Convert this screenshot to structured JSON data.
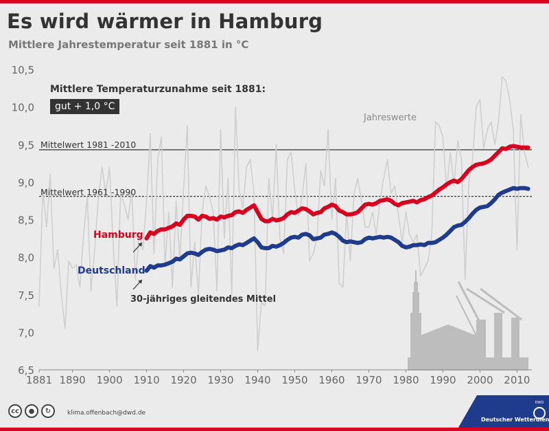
{
  "header": {
    "title": "Es wird wärmer in Hamburg",
    "subtitle": "Mittlere Jahrestemperatur seit 1881 in °C"
  },
  "annotations": {
    "increase_title": "Mittlere Temperaturzunahme seit 1881:",
    "increase_value": "gut + 1,0 °C",
    "jahreswerte": "Jahreswerte",
    "mittel_1981": "Mittelwert 1981 -2010",
    "mittel_1961": "Mittelwert 1961 -1990",
    "hamburg": "Hamburg",
    "deutschland": "Deutschland",
    "gleitend": "30-jähriges gleitendes Mittel"
  },
  "footer": {
    "email": "klima.offenbach@dwd.de",
    "dwd_label": "Deutscher Wetterdienst",
    "dwd_logo_text": "DWD"
  },
  "colors": {
    "hamburg": "#d7001f",
    "deutschland": "#1f3b8c",
    "annual": "#cfcfcf",
    "reference": "#333333",
    "skyline": "#bdbdbd"
  },
  "chart_data": {
    "type": "line",
    "title": "Es wird wärmer in Hamburg",
    "subtitle": "Mittlere Jahrestemperatur seit 1881 in °C",
    "xlim": [
      1881,
      2014
    ],
    "ylim": [
      6.5,
      10.5
    ],
    "x_ticks": [
      1881,
      1890,
      1900,
      1910,
      1920,
      1930,
      1940,
      1950,
      1960,
      1970,
      1980,
      1990,
      2000,
      2010
    ],
    "y_ticks": [
      6.5,
      7.0,
      7.5,
      8.0,
      8.5,
      9.0,
      9.5,
      10.0,
      10.5
    ],
    "y_tick_labels": [
      "6,5",
      "7,0",
      "7,5",
      "8,0",
      "8,5",
      "9,0",
      "9,5",
      "10,0",
      "10,5"
    ],
    "grid": false,
    "reference_lines": [
      {
        "name": "Mittelwert 1981 -2010",
        "value": 9.43,
        "style": "solid"
      },
      {
        "name": "Mittelwert 1961 -1990",
        "value": 8.81,
        "style": "dashed"
      }
    ],
    "series": [
      {
        "name": "Jahreswerte",
        "x": [
          1881,
          1882,
          1883,
          1884,
          1885,
          1886,
          1887,
          1888,
          1889,
          1890,
          1891,
          1892,
          1893,
          1894,
          1895,
          1896,
          1897,
          1898,
          1899,
          1900,
          1901,
          1902,
          1903,
          1904,
          1905,
          1906,
          1907,
          1908,
          1909,
          1910,
          1911,
          1912,
          1913,
          1914,
          1915,
          1916,
          1917,
          1918,
          1919,
          1920,
          1921,
          1922,
          1923,
          1924,
          1925,
          1926,
          1927,
          1928,
          1929,
          1930,
          1931,
          1932,
          1933,
          1934,
          1935,
          1936,
          1937,
          1938,
          1939,
          1940,
          1941,
          1942,
          1943,
          1944,
          1945,
          1946,
          1947,
          1948,
          1949,
          1950,
          1951,
          1952,
          1953,
          1954,
          1955,
          1956,
          1957,
          1958,
          1959,
          1960,
          1961,
          1962,
          1963,
          1964,
          1965,
          1966,
          1967,
          1968,
          1969,
          1970,
          1971,
          1972,
          1973,
          1974,
          1975,
          1976,
          1977,
          1978,
          1979,
          1980,
          1981,
          1982,
          1983,
          1984,
          1985,
          1986,
          1987,
          1988,
          1989,
          1990,
          1991,
          1992,
          1993,
          1994,
          1995,
          1996,
          1997,
          1998,
          1999,
          2000,
          2001,
          2002,
          2003,
          2004,
          2005,
          2006,
          2007,
          2008,
          2009,
          2010,
          2011,
          2012,
          2013
        ],
        "values": [
          7.35,
          8.9,
          8.4,
          9.1,
          7.85,
          8.1,
          7.5,
          7.05,
          7.95,
          7.85,
          7.9,
          7.6,
          8.3,
          8.8,
          7.55,
          8.1,
          8.8,
          9.2,
          8.85,
          9.2,
          8.15,
          7.35,
          8.85,
          8.7,
          8.5,
          8.9,
          7.7,
          8.3,
          8.1,
          8.75,
          9.65,
          8.05,
          9.3,
          9.6,
          7.9,
          8.6,
          7.6,
          8.75,
          7.95,
          8.9,
          9.75,
          7.6,
          8.2,
          7.5,
          8.6,
          8.95,
          8.8,
          8.6,
          7.55,
          9.7,
          8.25,
          9.05,
          7.5,
          10.0,
          8.9,
          8.65,
          9.2,
          9.3,
          8.85,
          6.75,
          7.4,
          7.35,
          9.05,
          8.5,
          9.5,
          8.25,
          8.05,
          9.3,
          9.4,
          8.9,
          8.55,
          8.8,
          9.25,
          7.95,
          8.05,
          8.25,
          9.15,
          8.95,
          9.7,
          8.5,
          9.05,
          7.65,
          7.6,
          8.6,
          7.95,
          8.85,
          9.05,
          8.75,
          8.4,
          8.4,
          8.6,
          8.3,
          8.75,
          9.05,
          9.3,
          8.85,
          8.95,
          8.55,
          8.2,
          8.6,
          8.3,
          8.2,
          8.3,
          7.75,
          7.85,
          7.95,
          8.3,
          9.8,
          9.75,
          9.6,
          8.9,
          9.4,
          8.95,
          9.55,
          9.3,
          7.7,
          9.0,
          9.3,
          10.0,
          10.1,
          9.45,
          9.7,
          9.8,
          9.5,
          9.8,
          10.4,
          10.35,
          10.1,
          9.7,
          8.1,
          9.9,
          9.4,
          9.2
        ]
      },
      {
        "name": "Hamburg",
        "x": [
          1910,
          1911,
          1912,
          1913,
          1914,
          1915,
          1916,
          1917,
          1918,
          1919,
          1920,
          1921,
          1922,
          1923,
          1924,
          1925,
          1926,
          1927,
          1928,
          1929,
          1930,
          1931,
          1932,
          1933,
          1934,
          1935,
          1936,
          1937,
          1938,
          1939,
          1940,
          1941,
          1942,
          1943,
          1944,
          1945,
          1946,
          1947,
          1948,
          1949,
          1950,
          1951,
          1952,
          1953,
          1954,
          1955,
          1956,
          1957,
          1958,
          1959,
          1960,
          1961,
          1962,
          1963,
          1964,
          1965,
          1966,
          1967,
          1968,
          1969,
          1970,
          1971,
          1972,
          1973,
          1974,
          1975,
          1976,
          1977,
          1978,
          1979,
          1980,
          1981,
          1982,
          1983,
          1984,
          1985,
          1986,
          1987,
          1988,
          1989,
          1990,
          1991,
          1992,
          1993,
          1994,
          1995,
          1996,
          1997,
          1998,
          1999,
          2000,
          2001,
          2002,
          2003,
          2004,
          2005,
          2006,
          2007,
          2008,
          2009,
          2010,
          2011,
          2012,
          2013
        ],
        "values": [
          8.25,
          8.33,
          8.31,
          8.35,
          8.37,
          8.37,
          8.39,
          8.41,
          8.45,
          8.43,
          8.5,
          8.55,
          8.55,
          8.54,
          8.5,
          8.55,
          8.54,
          8.51,
          8.52,
          8.5,
          8.54,
          8.53,
          8.55,
          8.56,
          8.6,
          8.61,
          8.59,
          8.63,
          8.66,
          8.69,
          8.6,
          8.51,
          8.48,
          8.48,
          8.51,
          8.49,
          8.5,
          8.52,
          8.57,
          8.6,
          8.59,
          8.62,
          8.65,
          8.64,
          8.61,
          8.57,
          8.59,
          8.6,
          8.65,
          8.67,
          8.7,
          8.68,
          8.62,
          8.6,
          8.57,
          8.57,
          8.58,
          8.6,
          8.65,
          8.7,
          8.71,
          8.7,
          8.72,
          8.75,
          8.76,
          8.77,
          8.75,
          8.71,
          8.69,
          8.72,
          8.73,
          8.74,
          8.75,
          8.73,
          8.76,
          8.77,
          8.8,
          8.82,
          8.86,
          8.9,
          8.93,
          8.97,
          9.0,
          9.02,
          9.0,
          9.04,
          9.1,
          9.16,
          9.2,
          9.23,
          9.24,
          9.25,
          9.27,
          9.3,
          9.35,
          9.4,
          9.45,
          9.44,
          9.47,
          9.48,
          9.47,
          9.46,
          9.46,
          9.46
        ]
      },
      {
        "name": "Deutschland",
        "x": [
          1910,
          1911,
          1912,
          1913,
          1914,
          1915,
          1916,
          1917,
          1918,
          1919,
          1920,
          1921,
          1922,
          1923,
          1924,
          1925,
          1926,
          1927,
          1928,
          1929,
          1930,
          1931,
          1932,
          1933,
          1934,
          1935,
          1936,
          1937,
          1938,
          1939,
          1940,
          1941,
          1942,
          1943,
          1944,
          1945,
          1946,
          1947,
          1948,
          1949,
          1950,
          1951,
          1952,
          1953,
          1954,
          1955,
          1956,
          1957,
          1958,
          1959,
          1960,
          1961,
          1962,
          1963,
          1964,
          1965,
          1966,
          1967,
          1968,
          1969,
          1970,
          1971,
          1972,
          1973,
          1974,
          1975,
          1976,
          1977,
          1978,
          1979,
          1980,
          1981,
          1982,
          1983,
          1984,
          1985,
          1986,
          1987,
          1988,
          1989,
          1990,
          1991,
          1992,
          1993,
          1994,
          1995,
          1996,
          1997,
          1998,
          1999,
          2000,
          2001,
          2002,
          2003,
          2004,
          2005,
          2006,
          2007,
          2008,
          2009,
          2010,
          2011,
          2012,
          2013
        ],
        "values": [
          7.82,
          7.88,
          7.86,
          7.89,
          7.89,
          7.9,
          7.92,
          7.94,
          7.98,
          7.97,
          8.01,
          8.05,
          8.06,
          8.05,
          8.03,
          8.07,
          8.1,
          8.11,
          8.1,
          8.08,
          8.09,
          8.1,
          8.13,
          8.12,
          8.15,
          8.17,
          8.16,
          8.19,
          8.22,
          8.25,
          8.2,
          8.13,
          8.12,
          8.12,
          8.15,
          8.14,
          8.16,
          8.19,
          8.23,
          8.26,
          8.27,
          8.26,
          8.3,
          8.31,
          8.29,
          8.24,
          8.25,
          8.26,
          8.3,
          8.31,
          8.33,
          8.31,
          8.27,
          8.22,
          8.2,
          8.21,
          8.2,
          8.19,
          8.2,
          8.24,
          8.26,
          8.25,
          8.26,
          8.27,
          8.26,
          8.27,
          8.26,
          8.23,
          8.2,
          8.15,
          8.13,
          8.14,
          8.16,
          8.16,
          8.17,
          8.16,
          8.19,
          8.19,
          8.2,
          8.23,
          8.26,
          8.3,
          8.35,
          8.4,
          8.42,
          8.43,
          8.47,
          8.52,
          8.58,
          8.63,
          8.66,
          8.67,
          8.68,
          8.72,
          8.77,
          8.83,
          8.86,
          8.88,
          8.9,
          8.92,
          8.91,
          8.92,
          8.92,
          8.91
        ]
      }
    ]
  }
}
